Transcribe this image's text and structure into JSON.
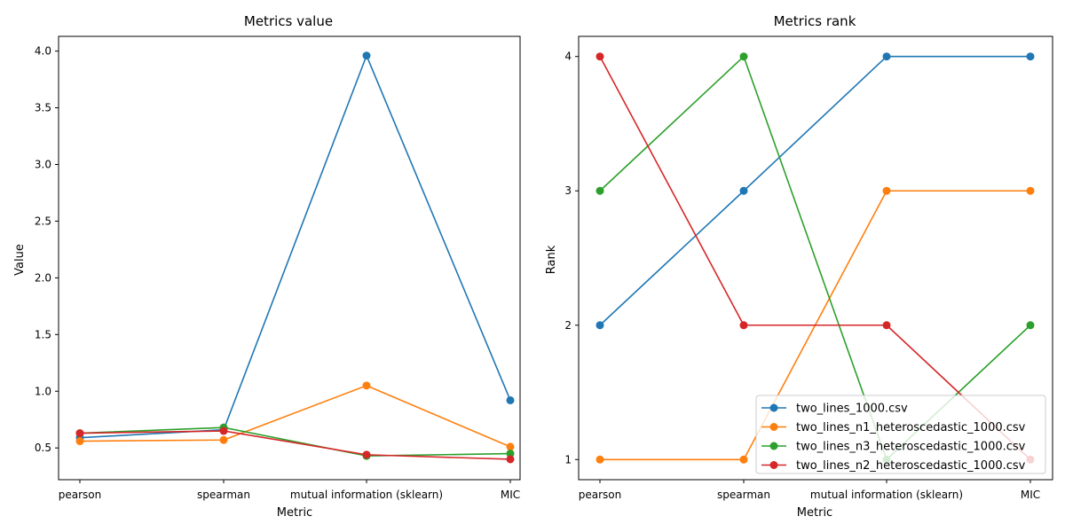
{
  "chart_data": [
    {
      "type": "line",
      "title": "Metrics value",
      "xlabel": "Metric",
      "ylabel": "Value",
      "categories": [
        "pearson",
        "spearman",
        "mutual information (sklearn)",
        "MIC"
      ],
      "ylim": [
        0.22,
        4.13
      ],
      "yticks": [
        "0.5",
        "1.0",
        "1.5",
        "2.0",
        "2.5",
        "3.0",
        "3.5",
        "4.0"
      ],
      "grid": false,
      "legend": "none",
      "markers": true,
      "series": [
        {
          "name": "two_lines_1000.csv",
          "color": "#1f77b4",
          "values": [
            0.59,
            0.66,
            3.96,
            0.92
          ]
        },
        {
          "name": "two_lines_n1_heteroscedastic_1000.csv",
          "color": "#ff7f0e",
          "values": [
            0.56,
            0.57,
            1.05,
            0.51
          ]
        },
        {
          "name": "two_lines_n3_heteroscedastic_1000.csv",
          "color": "#2ca02c",
          "values": [
            0.63,
            0.68,
            0.43,
            0.45
          ]
        },
        {
          "name": "two_lines_n2_heteroscedastic_1000.csv",
          "color": "#d62728",
          "values": [
            0.63,
            0.65,
            0.44,
            0.4
          ]
        }
      ]
    },
    {
      "type": "line",
      "title": "Metrics rank",
      "xlabel": "Metric",
      "ylabel": "Rank",
      "categories": [
        "pearson",
        "spearman",
        "mutual information (sklearn)",
        "MIC"
      ],
      "ylim": [
        0.85,
        4.15
      ],
      "yticks": [
        "1",
        "2",
        "3",
        "4"
      ],
      "grid": false,
      "legend": "lower-right",
      "markers": true,
      "series": [
        {
          "name": "two_lines_1000.csv",
          "color": "#1f77b4",
          "values": [
            2,
            3,
            4,
            4
          ]
        },
        {
          "name": "two_lines_n1_heteroscedastic_1000.csv",
          "color": "#ff7f0e",
          "values": [
            1,
            1,
            3,
            3
          ]
        },
        {
          "name": "two_lines_n3_heteroscedastic_1000.csv",
          "color": "#2ca02c",
          "values": [
            3,
            4,
            1,
            2
          ]
        },
        {
          "name": "two_lines_n2_heteroscedastic_1000.csv",
          "color": "#d62728",
          "values": [
            4,
            2,
            2,
            1
          ]
        }
      ]
    }
  ]
}
